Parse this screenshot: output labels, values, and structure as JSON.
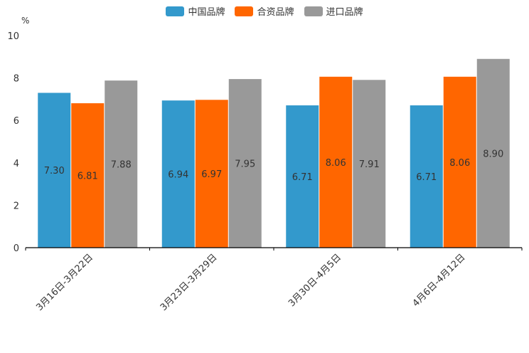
{
  "chart_data": {
    "type": "bar",
    "unit_label": "%",
    "categories": [
      "3月16日-3月22日",
      "3月23日-3月29日",
      "3月30日-4月5日",
      "4月6日-4月12日"
    ],
    "series": [
      {
        "name": "中国品牌",
        "color": "#3399cc",
        "values": [
          7.3,
          6.94,
          6.71,
          6.71
        ],
        "labels": [
          "7.30",
          "6.94",
          "6.71",
          "6.71"
        ]
      },
      {
        "name": "合资品牌",
        "color": "#ff6600",
        "values": [
          6.81,
          6.97,
          8.06,
          8.06
        ],
        "labels": [
          "6.81",
          "6.97",
          "8.06",
          "8.06"
        ]
      },
      {
        "name": "进口品牌",
        "color": "#999999",
        "values": [
          7.88,
          7.95,
          7.91,
          8.9
        ],
        "labels": [
          "7.88",
          "7.95",
          "7.91",
          "8.90"
        ]
      }
    ],
    "ylim": [
      0,
      10
    ],
    "yticks": [
      0,
      2,
      4,
      6,
      8,
      10
    ],
    "legend_position": "top-center"
  }
}
